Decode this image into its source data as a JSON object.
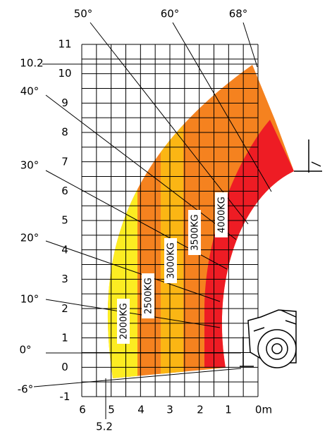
{
  "y_axis": {
    "labels": [
      "11",
      "10",
      "9",
      "8",
      "7",
      "6",
      "5",
      "4",
      "3",
      "2",
      "1",
      "0",
      "-1"
    ],
    "max_height_label": "10.2"
  },
  "x_axis": {
    "labels": [
      "6",
      "5",
      "4",
      "3",
      "2",
      "1",
      "0m"
    ],
    "max_reach_label": "5.2"
  },
  "angles": [
    {
      "label": "50°"
    },
    {
      "label": "60°"
    },
    {
      "label": "68°"
    },
    {
      "label": "40°"
    },
    {
      "label": "30°"
    },
    {
      "label": "20°"
    },
    {
      "label": "10°"
    },
    {
      "label": "0°"
    },
    {
      "label": "-6°"
    }
  ],
  "zones": [
    {
      "label": "2000KG"
    },
    {
      "label": "2500KG"
    },
    {
      "label": "3000KG"
    },
    {
      "label": "3500KG"
    },
    {
      "label": "4000KG"
    }
  ]
}
